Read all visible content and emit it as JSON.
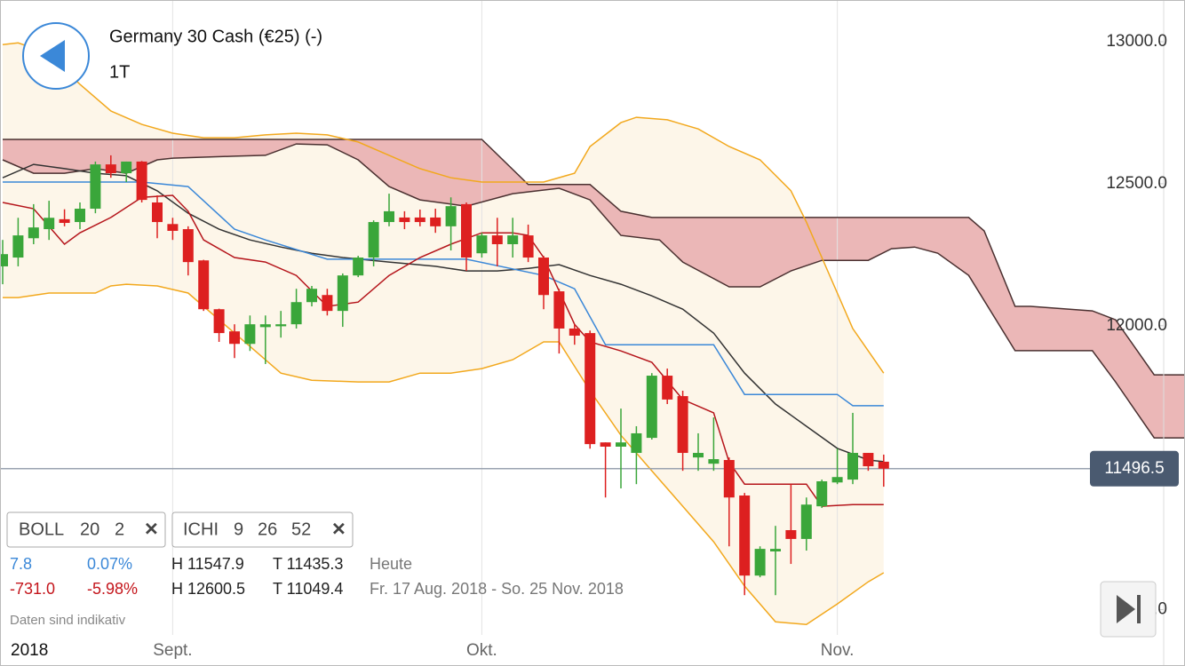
{
  "chart_data": {
    "type": "candlestick",
    "title": "Germany 30 Cash (€25) (-)",
    "timeframe": "1T",
    "x_year": "2018",
    "categories": [
      null,
      null,
      null,
      null,
      null,
      null,
      null,
      null,
      null,
      null,
      null,
      "Sept.",
      null,
      null,
      null,
      null,
      null,
      null,
      null,
      null,
      null,
      null,
      null,
      null,
      null,
      null,
      null,
      null,
      null,
      null,
      null,
      "Okt.",
      null,
      null,
      null,
      null,
      null,
      null,
      null,
      null,
      null,
      null,
      null,
      null,
      null,
      null,
      null,
      null,
      null,
      null,
      null,
      null,
      null,
      null,
      "Nov.",
      null,
      null,
      null
    ],
    "open": [
      12209,
      12240,
      12308,
      12340,
      12375,
      12365,
      12412,
      12568,
      12537,
      12578,
      12434,
      12358,
      12340,
      12230,
      12058,
      11980,
      11936,
      11995,
      11998,
      12005,
      12083,
      12108,
      12052,
      12177,
      12240,
      12365,
      12381,
      12381,
      12381,
      12350,
      12428,
      12255,
      12318,
      12287,
      12318,
      12240,
      12121,
      11990,
      11974,
      11589,
      11574,
      11552,
      11605,
      11824,
      11752,
      11536,
      11514,
      11527,
      11402,
      11120,
      11205,
      11280,
      11249,
      11364,
      11448,
      11458,
      11552,
      11521
    ],
    "high": [
      12302,
      12380,
      12428,
      12440,
      12410,
      12434,
      12578,
      12600,
      12578,
      12580,
      12459,
      12380,
      12350,
      12232,
      12060,
      12005,
      12036,
      12036,
      12052,
      12130,
      12140,
      12130,
      12184,
      12246,
      12371,
      12465,
      12403,
      12409,
      12412,
      12452,
      12434,
      12327,
      12380,
      12380,
      12356,
      12246,
      12130,
      12005,
      11983,
      11589,
      11708,
      11646,
      11833,
      11849,
      11771,
      11621,
      11677,
      11536,
      11411,
      11223,
      11295,
      11442,
      11395,
      11458,
      11567,
      11693,
      11552,
      11546
    ],
    "low": [
      12146,
      12209,
      12287,
      12302,
      12350,
      12340,
      12396,
      12521,
      12506,
      12434,
      12308,
      12302,
      12177,
      12052,
      11943,
      11886,
      11911,
      11865,
      11958,
      11990,
      12068,
      12036,
      11996,
      12171,
      12209,
      12350,
      12340,
      12350,
      12327,
      12265,
      12193,
      12240,
      12209,
      12240,
      12224,
      12058,
      11902,
      11933,
      11567,
      11395,
      11427,
      11442,
      11599,
      11724,
      11489,
      11489,
      11489,
      11223,
      11051,
      11114,
      11051,
      11161,
      11208,
      11358,
      11442,
      11442,
      11489,
      11433
    ],
    "close": [
      12252,
      12318,
      12346,
      12380,
      12362,
      12412,
      12568,
      12537,
      12578,
      12443,
      12365,
      12334,
      12224,
      12058,
      11974,
      11936,
      12005,
      12005,
      12005,
      12083,
      12130,
      12052,
      12177,
      12240,
      12365,
      12403,
      12365,
      12365,
      12350,
      12421,
      12240,
      12318,
      12287,
      12318,
      12240,
      12108,
      11990,
      11965,
      11583,
      11574,
      11589,
      11621,
      11824,
      11740,
      11552,
      11552,
      11530,
      11395,
      11120,
      11214,
      11214,
      11249,
      11370,
      11452,
      11467,
      11552,
      11505,
      11496.5
    ],
    "up_color": "#3aa63a",
    "down_color": "#dd2020",
    "ylim": [
      10911,
      13147
    ],
    "yticks": [
      {
        "value": 11000,
        "label": "11000.0"
      },
      {
        "value": 12000,
        "label": "12000.0"
      },
      {
        "value": 12500,
        "label": "12500.0"
      },
      {
        "value": 13000,
        "label": "13000.0"
      }
    ],
    "current_price": 11496.5,
    "band_fill": "#fdf6e9",
    "cloud_fill": "#ebb7b7",
    "cloud": [
      {
        "color": "#4a3030",
        "x": [
          0,
          31,
          34,
          38,
          40,
          42,
          62.5,
          63.5,
          65.5,
          66.5,
          70.5,
          72,
          74.5,
          76.5
        ],
        "values": [
          12656,
          12656,
          12497,
          12497,
          12403,
          12381,
          12381,
          12334,
          12068,
          12068,
          12052,
          12021,
          11827,
          11827
        ]
      },
      {
        "color": "#4a3030",
        "x": [
          0,
          2,
          4,
          6,
          8,
          10,
          11,
          15,
          17,
          19,
          21,
          23,
          25,
          27,
          30,
          33,
          36,
          38,
          40,
          42.5,
          44,
          47,
          49,
          51,
          53,
          56,
          57.5,
          59,
          60.5,
          62.5,
          65.5,
          67.5,
          70.5,
          72,
          74.5,
          76.5
        ],
        "values": [
          12584,
          12537,
          12537,
          12553,
          12537,
          12584,
          12590,
          12597,
          12600,
          12640,
          12637,
          12584,
          12490,
          12443,
          12421,
          12465,
          12484,
          12443,
          12318,
          12302,
          12224,
          12137,
          12137,
          12193,
          12230,
          12230,
          12271,
          12277,
          12255,
          12177,
          11912,
          11912,
          11912,
          11802,
          11605,
          11605
        ]
      }
    ],
    "overlays": [
      {
        "color": "#f2a81d",
        "x": [
          0,
          1,
          3,
          5,
          7,
          9,
          11,
          13,
          15,
          17,
          19,
          21,
          23,
          25,
          27,
          29,
          31,
          33,
          35,
          37,
          38,
          40,
          41,
          43,
          45,
          47,
          49,
          51,
          52,
          53,
          55,
          57
        ],
        "values": [
          12990,
          12996,
          12958,
          12850,
          12756,
          12709,
          12678,
          12662,
          12662,
          12672,
          12678,
          12672,
          12647,
          12600,
          12553,
          12521,
          12506,
          12506,
          12506,
          12537,
          12631,
          12715,
          12734,
          12725,
          12693,
          12631,
          12584,
          12475,
          12365,
          12240,
          11990,
          11833
        ]
      },
      {
        "color": "#f2a81d",
        "x": [
          0,
          1,
          3,
          6,
          7,
          8,
          10,
          12,
          14,
          16,
          18,
          20,
          23,
          25,
          27,
          29,
          31,
          33,
          35,
          36,
          38,
          40,
          42,
          44,
          46,
          48,
          50,
          52,
          54,
          56,
          57
        ],
        "values": [
          12099,
          12099,
          12115,
          12115,
          12140,
          12146,
          12140,
          12115,
          12021,
          11927,
          11833,
          11808,
          11802,
          11802,
          11833,
          11833,
          11849,
          11880,
          11943,
          11943,
          11771,
          11614,
          11489,
          11364,
          11239,
          11083,
          10957,
          10948,
          11020,
          11098,
          11130
        ]
      },
      {
        "color": "#333333",
        "x": [
          0,
          2,
          4,
          6,
          8,
          10,
          12,
          14,
          16,
          18,
          20,
          22,
          25,
          28,
          30,
          32,
          34,
          36,
          38,
          40,
          42,
          44,
          46,
          48,
          50,
          52,
          54,
          56,
          57
        ],
        "values": [
          12521,
          12568,
          12553,
          12537,
          12528,
          12475,
          12396,
          12340,
          12302,
          12277,
          12255,
          12240,
          12224,
          12209,
          12193,
          12193,
          12202,
          12215,
          12177,
          12146,
          12105,
          12058,
          11974,
          11833,
          11724,
          11646,
          11568,
          11527,
          11521
        ]
      },
      {
        "color": "#3b88d8",
        "x": [
          0,
          9,
          12,
          15,
          17,
          21,
          30,
          35,
          37,
          39,
          46,
          48,
          54,
          55,
          57
        ],
        "values": [
          12506,
          12506,
          12490,
          12340,
          12302,
          12234,
          12234,
          12177,
          12130,
          11933,
          11933,
          11758,
          11758,
          11718,
          11718
        ]
      },
      {
        "color": "#b5151b",
        "x": [
          0,
          2,
          4,
          5,
          7,
          9,
          11,
          12,
          13,
          15,
          17,
          19,
          21,
          23,
          25,
          27,
          29,
          31,
          33,
          34,
          35,
          37,
          38,
          40,
          42,
          44,
          46,
          47,
          48,
          51,
          52,
          53,
          55,
          57
        ],
        "values": [
          12434,
          12412,
          12287,
          12327,
          12381,
          12452,
          12459,
          12403,
          12302,
          12240,
          12224,
          12177,
          12068,
          12083,
          12177,
          12240,
          12287,
          12327,
          12327,
          12318,
          12240,
          12005,
          11943,
          11911,
          11871,
          11740,
          11693,
          11520,
          11442,
          11442,
          11442,
          11364,
          11370,
          11370
        ]
      }
    ]
  },
  "indicators": [
    {
      "name": "BOLL",
      "params": [
        20,
        2
      ],
      "remove": "✕"
    },
    {
      "name": "ICHI",
      "params": [
        9,
        26,
        52
      ],
      "remove": "✕"
    }
  ],
  "stats": [
    [
      "7.8",
      "0.07%",
      "H 11547.9",
      "T 11435.3",
      "Heute"
    ],
    [
      "-731.0",
      "-5.98%",
      "H 12600.5",
      "T 11049.4",
      "Fr. 17 Aug. 2018 - So. 25 Nov. 2018"
    ]
  ],
  "disclaimer": "Daten sind indikativ"
}
